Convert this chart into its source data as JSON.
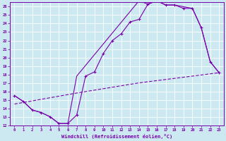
{
  "xlabel": "Windchill (Refroidissement éolien,°C)",
  "bg_color": "#cce8f0",
  "grid_color": "#ffffff",
  "line_color": "#7700aa",
  "xlim": [
    -0.5,
    23.5
  ],
  "ylim": [
    12,
    26.5
  ],
  "xticks": [
    0,
    1,
    2,
    3,
    4,
    5,
    6,
    7,
    8,
    9,
    10,
    11,
    12,
    13,
    14,
    15,
    16,
    17,
    18,
    19,
    20,
    21,
    22,
    23
  ],
  "yticks": [
    12,
    13,
    14,
    15,
    16,
    17,
    18,
    19,
    20,
    21,
    22,
    23,
    24,
    25,
    26
  ],
  "curve1_x": [
    0,
    1,
    2,
    3,
    4,
    5,
    6,
    7,
    8,
    9,
    10,
    11,
    12,
    13,
    14,
    15,
    16,
    17,
    18,
    19,
    20,
    21,
    22,
    23
  ],
  "curve1_y": [
    15.5,
    14.8,
    13.8,
    13.5,
    13.0,
    12.2,
    12.2,
    13.2,
    17.8,
    18.3,
    20.5,
    22.0,
    22.8,
    24.2,
    24.5,
    26.3,
    26.7,
    26.2,
    26.2,
    25.8,
    25.8,
    23.5,
    19.5,
    18.2
  ],
  "curve2_x": [
    0,
    1,
    2,
    3,
    4,
    5,
    6,
    7,
    14,
    15,
    16,
    17,
    18,
    20,
    21,
    22,
    23
  ],
  "curve2_y": [
    15.5,
    14.8,
    13.8,
    13.5,
    13.0,
    12.2,
    12.2,
    17.8,
    26.7,
    26.3,
    26.7,
    26.2,
    26.2,
    25.8,
    23.5,
    19.5,
    18.2
  ],
  "curve3_x": [
    0,
    7,
    14,
    23
  ],
  "curve3_y": [
    14.5,
    15.8,
    17.0,
    18.2
  ],
  "markersize": 2.5
}
